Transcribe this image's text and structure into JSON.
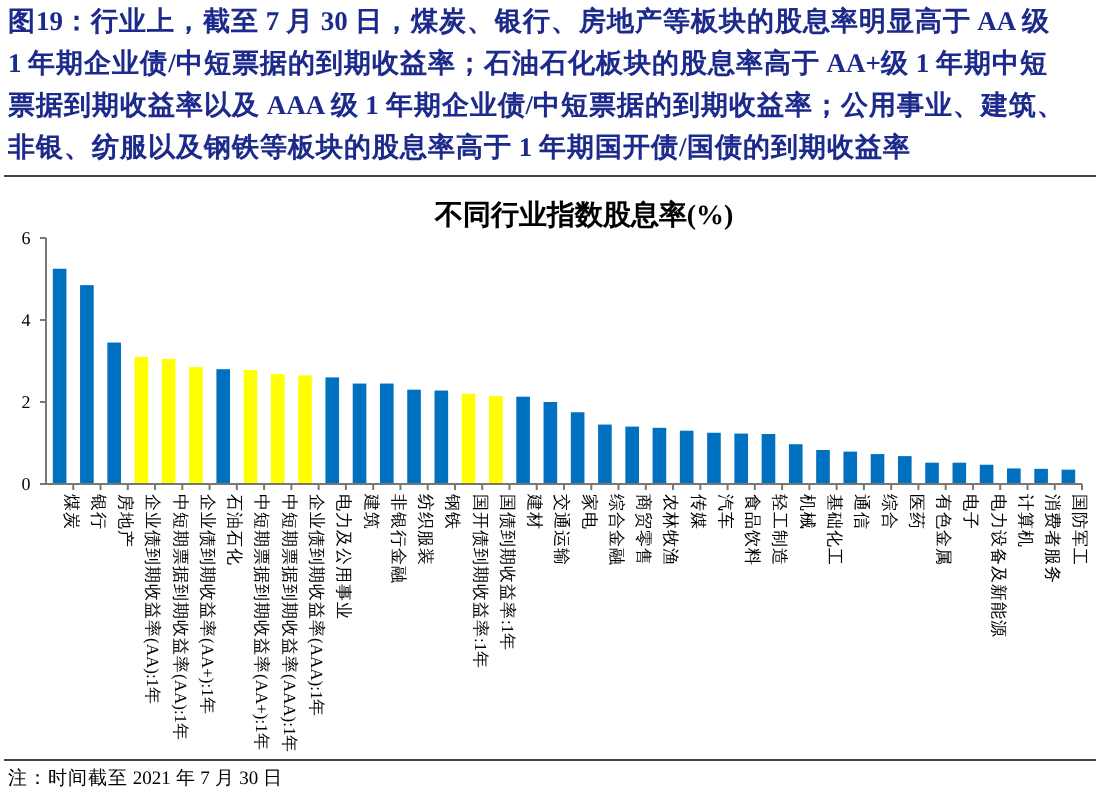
{
  "chart_data": {
    "type": "bar",
    "title": "图19：行业上，截至 7 月 30 日，煤炭、银行、房地产等板块的股息率明显高于 AA 级 1 年期企业债/中短票据的到期收益率；石油石化板块的股息率高于 AA+级 1 年期中短票据到期收益率以及 AAA 级 1 年期企业债/中短票据的到期收益率；公用事业、建筑、非银、纺服以及钢铁等板块的股息率高于 1 年期国开债/国债的到期收益率",
    "subtitle": "不同行业指数股息率(%)",
    "categories": [
      "煤炭",
      "银行",
      "房地产",
      "企业债到期收益率(AA):1年",
      "中短期票据到期收益率(AA):1年",
      "企业债到期收益率(AA+):1年",
      "石油石化",
      "中短期票据到期收益率(AA+):1年",
      "中短期票据到期收益率(AAA):1年",
      "企业债到期收益率(AAA):1年",
      "电力及公用事业",
      "建筑",
      "非银行金融",
      "纺织服装",
      "钢铁",
      "国开债到期收益率:1年",
      "国债到期收益率:1年",
      "建材",
      "交通运输",
      "家电",
      "综合金融",
      "商贸零售",
      "农林牧渔",
      "传媒",
      "汽车",
      "食品饮料",
      "轻工制造",
      "机械",
      "基础化工",
      "通信",
      "综合",
      "医药",
      "有色金属",
      "电子",
      "电力设备及新能源",
      "计算机",
      "消费者服务",
      "国防军工"
    ],
    "values": [
      5.25,
      4.85,
      3.45,
      3.1,
      3.05,
      2.85,
      2.8,
      2.78,
      2.68,
      2.65,
      2.6,
      2.45,
      2.45,
      2.3,
      2.28,
      2.2,
      2.15,
      2.13,
      2.0,
      1.75,
      1.45,
      1.4,
      1.37,
      1.3,
      1.25,
      1.23,
      1.22,
      0.97,
      0.83,
      0.79,
      0.73,
      0.68,
      0.52,
      0.52,
      0.47,
      0.38,
      0.37,
      0.35
    ],
    "colors": [
      "#0070c0",
      "#0070c0",
      "#0070c0",
      "#ffff00",
      "#ffff00",
      "#ffff00",
      "#0070c0",
      "#ffff00",
      "#ffff00",
      "#ffff00",
      "#0070c0",
      "#0070c0",
      "#0070c0",
      "#0070c0",
      "#0070c0",
      "#ffff00",
      "#ffff00",
      "#0070c0",
      "#0070c0",
      "#0070c0",
      "#0070c0",
      "#0070c0",
      "#0070c0",
      "#0070c0",
      "#0070c0",
      "#0070c0",
      "#0070c0",
      "#0070c0",
      "#0070c0",
      "#0070c0",
      "#0070c0",
      "#0070c0",
      "#0070c0",
      "#0070c0",
      "#0070c0",
      "#0070c0",
      "#0070c0",
      "#0070c0"
    ],
    "ylim": [
      0,
      6
    ],
    "yticks": [
      0,
      2,
      4,
      6
    ],
    "grid": false,
    "annotations": [
      "注：时间截至 2021 年 7 月 30 日"
    ]
  }
}
